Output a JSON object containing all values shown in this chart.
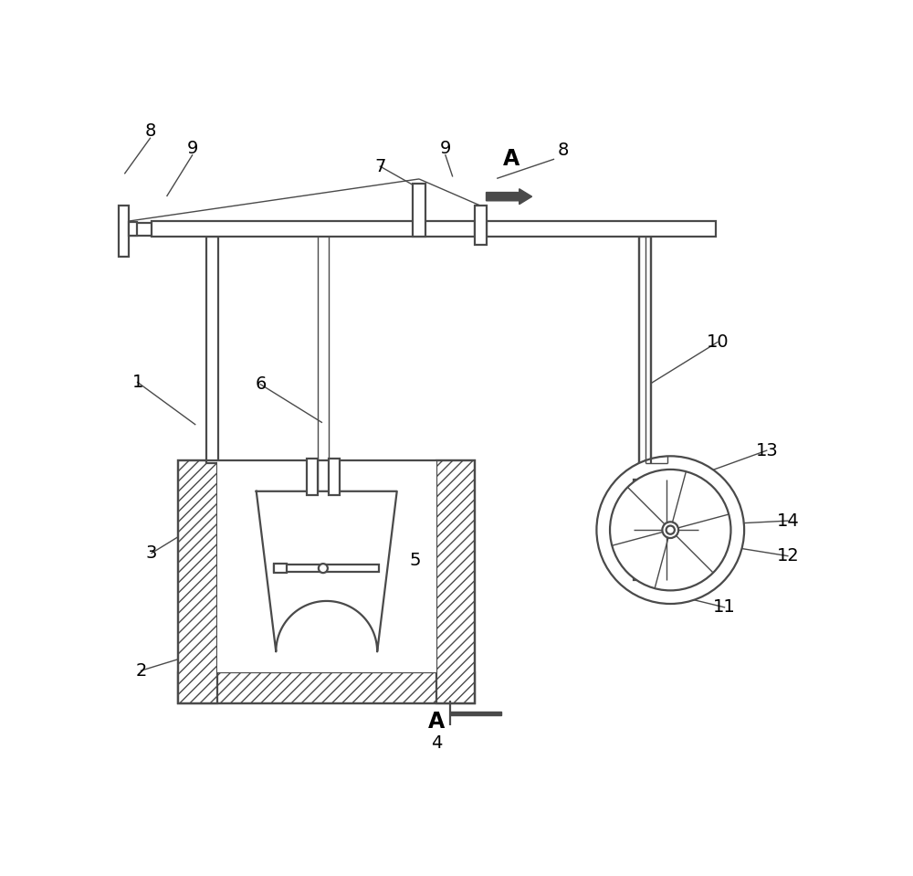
{
  "bg_color": "#ffffff",
  "line_color": "#4a4a4a",
  "label_color": "#000000",
  "label_fontsize": 14,
  "lw_main": 1.6,
  "lw_thin": 1.0,
  "lw_hatch": 1.2
}
